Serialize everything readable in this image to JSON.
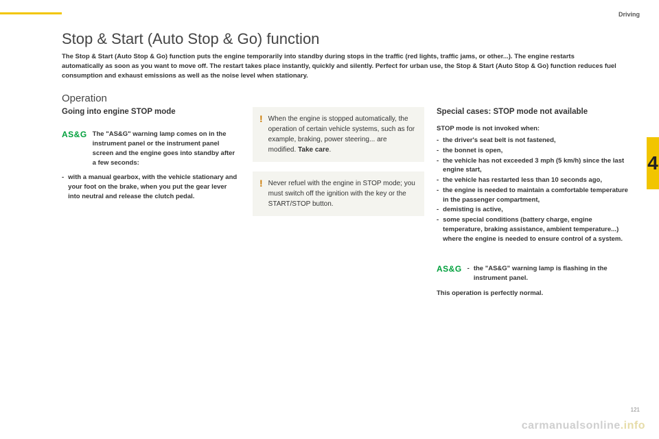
{
  "meta": {
    "section": "Driving",
    "chapterNumber": "4",
    "pageNumber": "121"
  },
  "title": "Stop & Start (Auto Stop & Go) function",
  "intro": "The Stop & Start (Auto Stop & Go) function puts the engine temporarily into standby during stops in the traffic (red lights, traffic jams, or other...). The engine restarts automatically as soon as you want to move off. The restart takes place instantly, quickly and silently. Perfect for urban use, the Stop & Start (Auto Stop & Go) function reduces fuel consumption and exhaust emissions as well as the noise level when stationary.",
  "operationHeading": "Operation",
  "left": {
    "heading": "Going into engine STOP mode",
    "badge": "AS&G",
    "badgeText": "The \"AS&G\" warning lamp comes on in the instrument panel or the instrument panel screen and the engine goes into standby after a few seconds:",
    "bullet": "with a manual gearbox, with the vehicle stationary and your foot on the brake, when you put the gear lever into neutral and release the clutch pedal."
  },
  "alerts": {
    "a1": {
      "text": "When the engine is stopped automatically, the operation of certain vehicle systems, such as for example, braking, power steering... are modified.",
      "bold": "Take care"
    },
    "a2": {
      "text": "Never refuel with the engine in STOP mode; you must switch off the ignition with the key or the START/STOP button."
    }
  },
  "right": {
    "heading": "Special cases: STOP mode not available",
    "lead": "STOP mode is not invoked when:",
    "items": [
      "the driver's seat belt is not fastened,",
      "the bonnet is open,",
      "the vehicle has not exceeded 3 mph (5 km/h) since the last engine start,",
      "the vehicle has restarted less than 10 seconds ago,",
      "the engine is needed to maintain a comfortable temperature in the passenger compartment,",
      "demisting is active,",
      "some special conditions (battery charge, engine temperature, braking assistance, ambient temperature...) where the engine is needed to ensure control of a system."
    ],
    "badge": "AS&G",
    "badgeBullet": "the \"AS&G\" warning lamp is flashing in the instrument panel.",
    "note": "This operation is perfectly normal."
  },
  "footer": {
    "host": "carmanualsonline",
    "tld": ".info"
  },
  "colors": {
    "accent": "#f2c500",
    "green": "#00a03c",
    "alertBg": "#f4f4ef",
    "bang": "#cc7a00"
  }
}
